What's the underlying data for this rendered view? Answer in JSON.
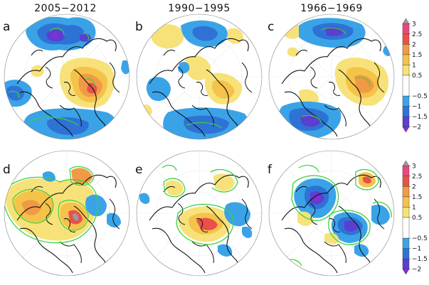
{
  "figure": {
    "column_titles": [
      "2005−2012",
      "1990−1995",
      "1966−1969"
    ],
    "panel_letters": [
      "a",
      "b",
      "c",
      "d",
      "e",
      "f"
    ]
  },
  "chart_data": [
    {
      "type": "heatmap",
      "subtype": "polar stereographic anomaly maps (Northern Hemisphere)",
      "panels": [
        {
          "letter": "a",
          "title": "2005−2012",
          "row": 1
        },
        {
          "letter": "b",
          "title": "1990−1995",
          "row": 1
        },
        {
          "letter": "c",
          "title": "1966−1969",
          "row": 1
        }
      ],
      "colorbar": {
        "ticks": [
          "3",
          "2.5",
          "2",
          "1.5",
          "1",
          "0.5",
          "−0.5",
          "−1",
          "−1.5",
          "−2"
        ],
        "range": [
          -2.25,
          3.25
        ],
        "extend": "both",
        "levels": [
          {
            "lo": 3,
            "hi": 3.25,
            "color": "#9a9a9a"
          },
          {
            "lo": 2.5,
            "hi": 3,
            "color": "#e8497a"
          },
          {
            "lo": 2,
            "hi": 2.5,
            "color": "#e9504a"
          },
          {
            "lo": 1.5,
            "hi": 2,
            "color": "#f19a45"
          },
          {
            "lo": 1,
            "hi": 1.5,
            "color": "#f5c24a"
          },
          {
            "lo": 0.5,
            "hi": 1,
            "color": "#f7e27a"
          },
          {
            "lo": -0.5,
            "hi": 0.5,
            "color": "#ffffff"
          },
          {
            "lo": -1,
            "hi": -0.5,
            "color": "#3aa3e8"
          },
          {
            "lo": -1.5,
            "hi": -1,
            "color": "#2f72d6"
          },
          {
            "lo": -2,
            "hi": -1.5,
            "color": "#5a3fd0"
          },
          {
            "lo": -2.25,
            "hi": -2,
            "color": "#8a2bd6"
          }
        ]
      }
    },
    {
      "type": "heatmap",
      "subtype": "polar stereographic anomaly maps (Northern Hemisphere)",
      "panels": [
        {
          "letter": "d",
          "row": 2
        },
        {
          "letter": "e",
          "row": 2
        },
        {
          "letter": "f",
          "row": 2
        }
      ],
      "colorbar": {
        "ticks": [
          "3",
          "2.5",
          "2",
          "1.5",
          "1",
          "0.5",
          "−0.5",
          "−1",
          "−1.5",
          "−2"
        ],
        "range": [
          -2.25,
          3.25
        ],
        "extend": "both"
      }
    }
  ]
}
